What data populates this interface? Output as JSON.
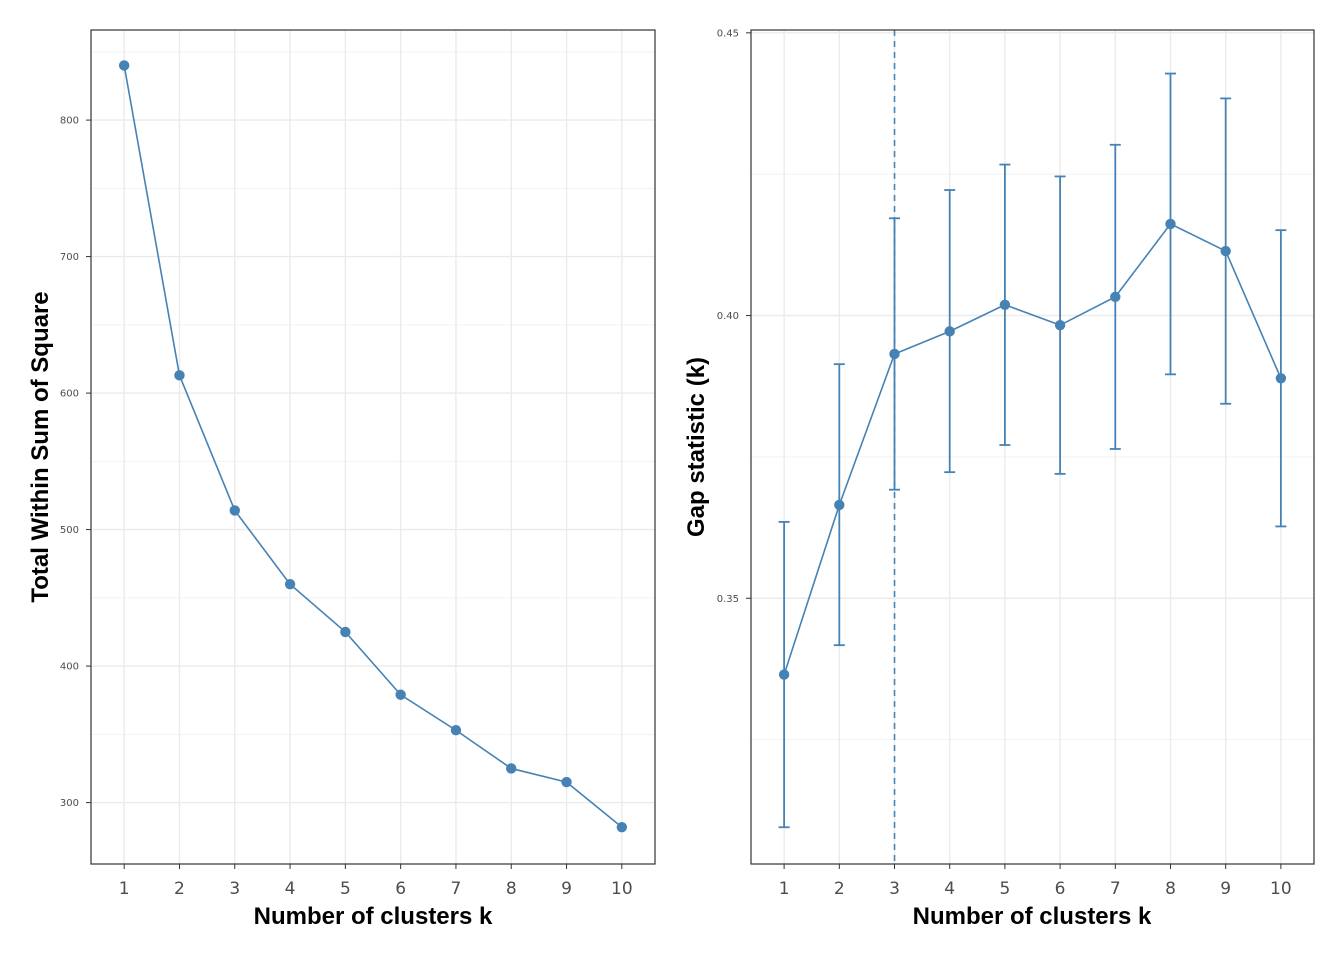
{
  "chart_data": [
    {
      "type": "line",
      "title": "",
      "xlabel": "Number of clusters k",
      "ylabel": "Total Within Sum of Square",
      "x": [
        1,
        2,
        3,
        4,
        5,
        6,
        7,
        8,
        9,
        10
      ],
      "values": [
        840,
        613,
        514,
        460,
        425,
        379,
        353,
        325,
        315,
        282
      ],
      "xlim": [
        0.4,
        10.6
      ],
      "ylim": [
        255,
        866
      ],
      "yticks": [
        300,
        400,
        500,
        600,
        700,
        800
      ],
      "ytick_labels": [
        "300",
        "400",
        "500",
        "600",
        "700",
        "800"
      ],
      "xtick_labels": [
        "1",
        "2",
        "3",
        "4",
        "5",
        "6",
        "7",
        "8",
        "9",
        "10"
      ],
      "grid": true,
      "color": "#4682b4"
    },
    {
      "type": "line",
      "title": "",
      "xlabel": "Number of clusters k",
      "ylabel": "Gap statistic (k)",
      "x": [
        1,
        2,
        3,
        4,
        5,
        6,
        7,
        8,
        9,
        10
      ],
      "values": [
        0.3365,
        0.3665,
        0.3932,
        0.3972,
        0.4019,
        0.3983,
        0.4033,
        0.4162,
        0.4114,
        0.3889
      ],
      "error_low": [
        0.3095,
        0.3417,
        0.3692,
        0.3723,
        0.3771,
        0.372,
        0.3764,
        0.3896,
        0.3844,
        0.3627
      ],
      "error_high": [
        0.3635,
        0.3914,
        0.4172,
        0.4222,
        0.4267,
        0.4246,
        0.4302,
        0.4428,
        0.4384,
        0.4151
      ],
      "optimal_k": 3,
      "xlim": [
        0.4,
        10.6
      ],
      "ylim": [
        0.303,
        0.4505
      ],
      "yticks": [
        0.35,
        0.4,
        0.45
      ],
      "ytick_labels": [
        "0.35",
        "0.40",
        "0.45"
      ],
      "xtick_labels": [
        "1",
        "2",
        "3",
        "4",
        "5",
        "6",
        "7",
        "8",
        "9",
        "10"
      ],
      "grid": true,
      "color": "#4682b4"
    }
  ]
}
